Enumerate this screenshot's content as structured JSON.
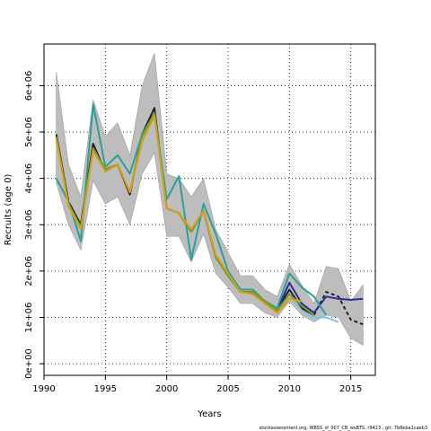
{
  "chart_data": {
    "type": "line",
    "title": "",
    "xlabel": "Years",
    "ylabel": "Recruits (age 0)",
    "xlim": [
      1990,
      2017
    ],
    "ylim": [
      -250000,
      6900000
    ],
    "xticks": [
      1990,
      1995,
      2000,
      2005,
      2010,
      2015
    ],
    "xtick_labels": [
      "1990",
      "1995",
      "2000",
      "2005",
      "2010",
      "2015"
    ],
    "yticks": [
      0,
      1000000,
      2000000,
      3000000,
      4000000,
      5000000,
      6000000
    ],
    "ytick_labels": [
      "0e+00",
      "1e+06",
      "2e+06",
      "3e+06",
      "4e+06",
      "5e+06",
      "6e+06"
    ],
    "grid": true,
    "confidence_band": {
      "x": [
        1991,
        1992,
        1993,
        1994,
        1995,
        1996,
        1997,
        1998,
        1999,
        2000,
        2001,
        2002,
        2003,
        2004,
        2005,
        2006,
        2007,
        2008,
        2009,
        2010,
        2011,
        2012,
        2013,
        2014,
        2015,
        2016
      ],
      "upper": [
        6300000,
        4300000,
        3600000,
        5700000,
        4900000,
        5200000,
        4500000,
        6000000,
        6700000,
        4100000,
        4000000,
        3600000,
        4000000,
        2900000,
        2400000,
        1900000,
        1900000,
        1600000,
        1450000,
        2150000,
        1700000,
        1300000,
        2100000,
        2050000,
        1350000,
        1700000
      ],
      "lower": [
        3900000,
        3000000,
        2450000,
        3950000,
        3450000,
        3600000,
        3000000,
        4100000,
        4550000,
        2750000,
        2750000,
        2200000,
        2800000,
        1950000,
        1650000,
        1300000,
        1300000,
        1100000,
        1000000,
        1350000,
        1050000,
        900000,
        1050000,
        1000000,
        550000,
        400000
      ]
    },
    "series": [
      {
        "color": "#222222",
        "dashed": false,
        "x": [
          1991,
          1992,
          1993,
          1994,
          1995,
          1996,
          1997,
          1998,
          1999,
          2000,
          2001,
          2002,
          2003,
          2004,
          2005,
          2006,
          2007,
          2008,
          2009,
          2010,
          2011,
          2012
        ],
        "values": [
          4950000,
          3500000,
          3000000,
          4750000,
          4150000,
          4300000,
          3650000,
          4950000,
          5520000,
          3350000,
          3250000,
          2850000,
          3300000,
          2300000,
          1900000,
          1550000,
          1550000,
          1350000,
          1150000,
          1600000,
          1200000,
          1050000
        ]
      },
      {
        "color": "#222222",
        "dashed": true,
        "x": [
          2012,
          2013,
          2014,
          2015,
          2016
        ],
        "values": [
          1050000,
          1550000,
          1450000,
          950000,
          850000
        ]
      },
      {
        "color": "#2b2b9c",
        "dashed": false,
        "x": [
          2009,
          2010,
          2011,
          2012,
          2013,
          2014,
          2015,
          2016
        ],
        "values": [
          1150000,
          1750000,
          1300000,
          1100000,
          1450000,
          1400000,
          1380000,
          1400000
        ]
      },
      {
        "color": "#7fc7e0",
        "dashed": false,
        "x": [
          2010,
          2011,
          2012,
          2013,
          2014
        ],
        "values": [
          1500000,
          1150000,
          1000000,
          1000000,
          900000
        ]
      },
      {
        "color": "#2aa198",
        "dashed": false,
        "x": [
          1991,
          1992,
          1993,
          1994,
          1995,
          1996,
          1997,
          1998,
          1999,
          2000,
          2001,
          2002,
          2003,
          2004,
          2005,
          2006,
          2007,
          2008,
          2009,
          2010,
          2011,
          2012,
          2013
        ],
        "values": [
          4000000,
          3500000,
          2650000,
          5600000,
          4250000,
          4500000,
          4100000,
          4950000,
          5400000,
          3550000,
          4050000,
          2250000,
          3450000,
          2800000,
          2000000,
          1600000,
          1600000,
          1350000,
          1200000,
          1950000,
          1650000,
          1450000,
          1050000
        ]
      },
      {
        "color": "#7a9a2e",
        "dashed": false,
        "x": [
          1991,
          1992,
          1993,
          1994,
          1995,
          1996,
          1997,
          1998,
          1999,
          2000,
          2001,
          2002,
          2003,
          2004,
          2005,
          2006,
          2007,
          2008,
          2009,
          2010,
          2011,
          2012
        ],
        "values": [
          4900000,
          3450000,
          2950000,
          4650000,
          4200000,
          4300000,
          3700000,
          4900000,
          5400000,
          3350000,
          3250000,
          2850000,
          3300000,
          2300000,
          1900000,
          1550000,
          1550000,
          1350000,
          1150000,
          1500000,
          1250000,
          1050000
        ]
      },
      {
        "color": "#d4a017",
        "dashed": false,
        "x": [
          1991,
          1992,
          1993,
          1994,
          1995,
          1996,
          1997,
          1998,
          1999,
          2000,
          2001,
          2002,
          2003,
          2004,
          2005,
          2006,
          2007,
          2008,
          2009,
          2010,
          2011
        ],
        "values": [
          4850000,
          3400000,
          2900000,
          4600000,
          4150000,
          4300000,
          3700000,
          4800000,
          5350000,
          3350000,
          3250000,
          2900000,
          3300000,
          2350000,
          1950000,
          1550000,
          1500000,
          1300000,
          1100000,
          1400000,
          1350000
        ]
      }
    ]
  },
  "footer": {
    "text": "stockassessment.org,  WBSS_sf_007_CB_wsBTS,  r9423 ,  git: 7b8eba1caeb3"
  }
}
